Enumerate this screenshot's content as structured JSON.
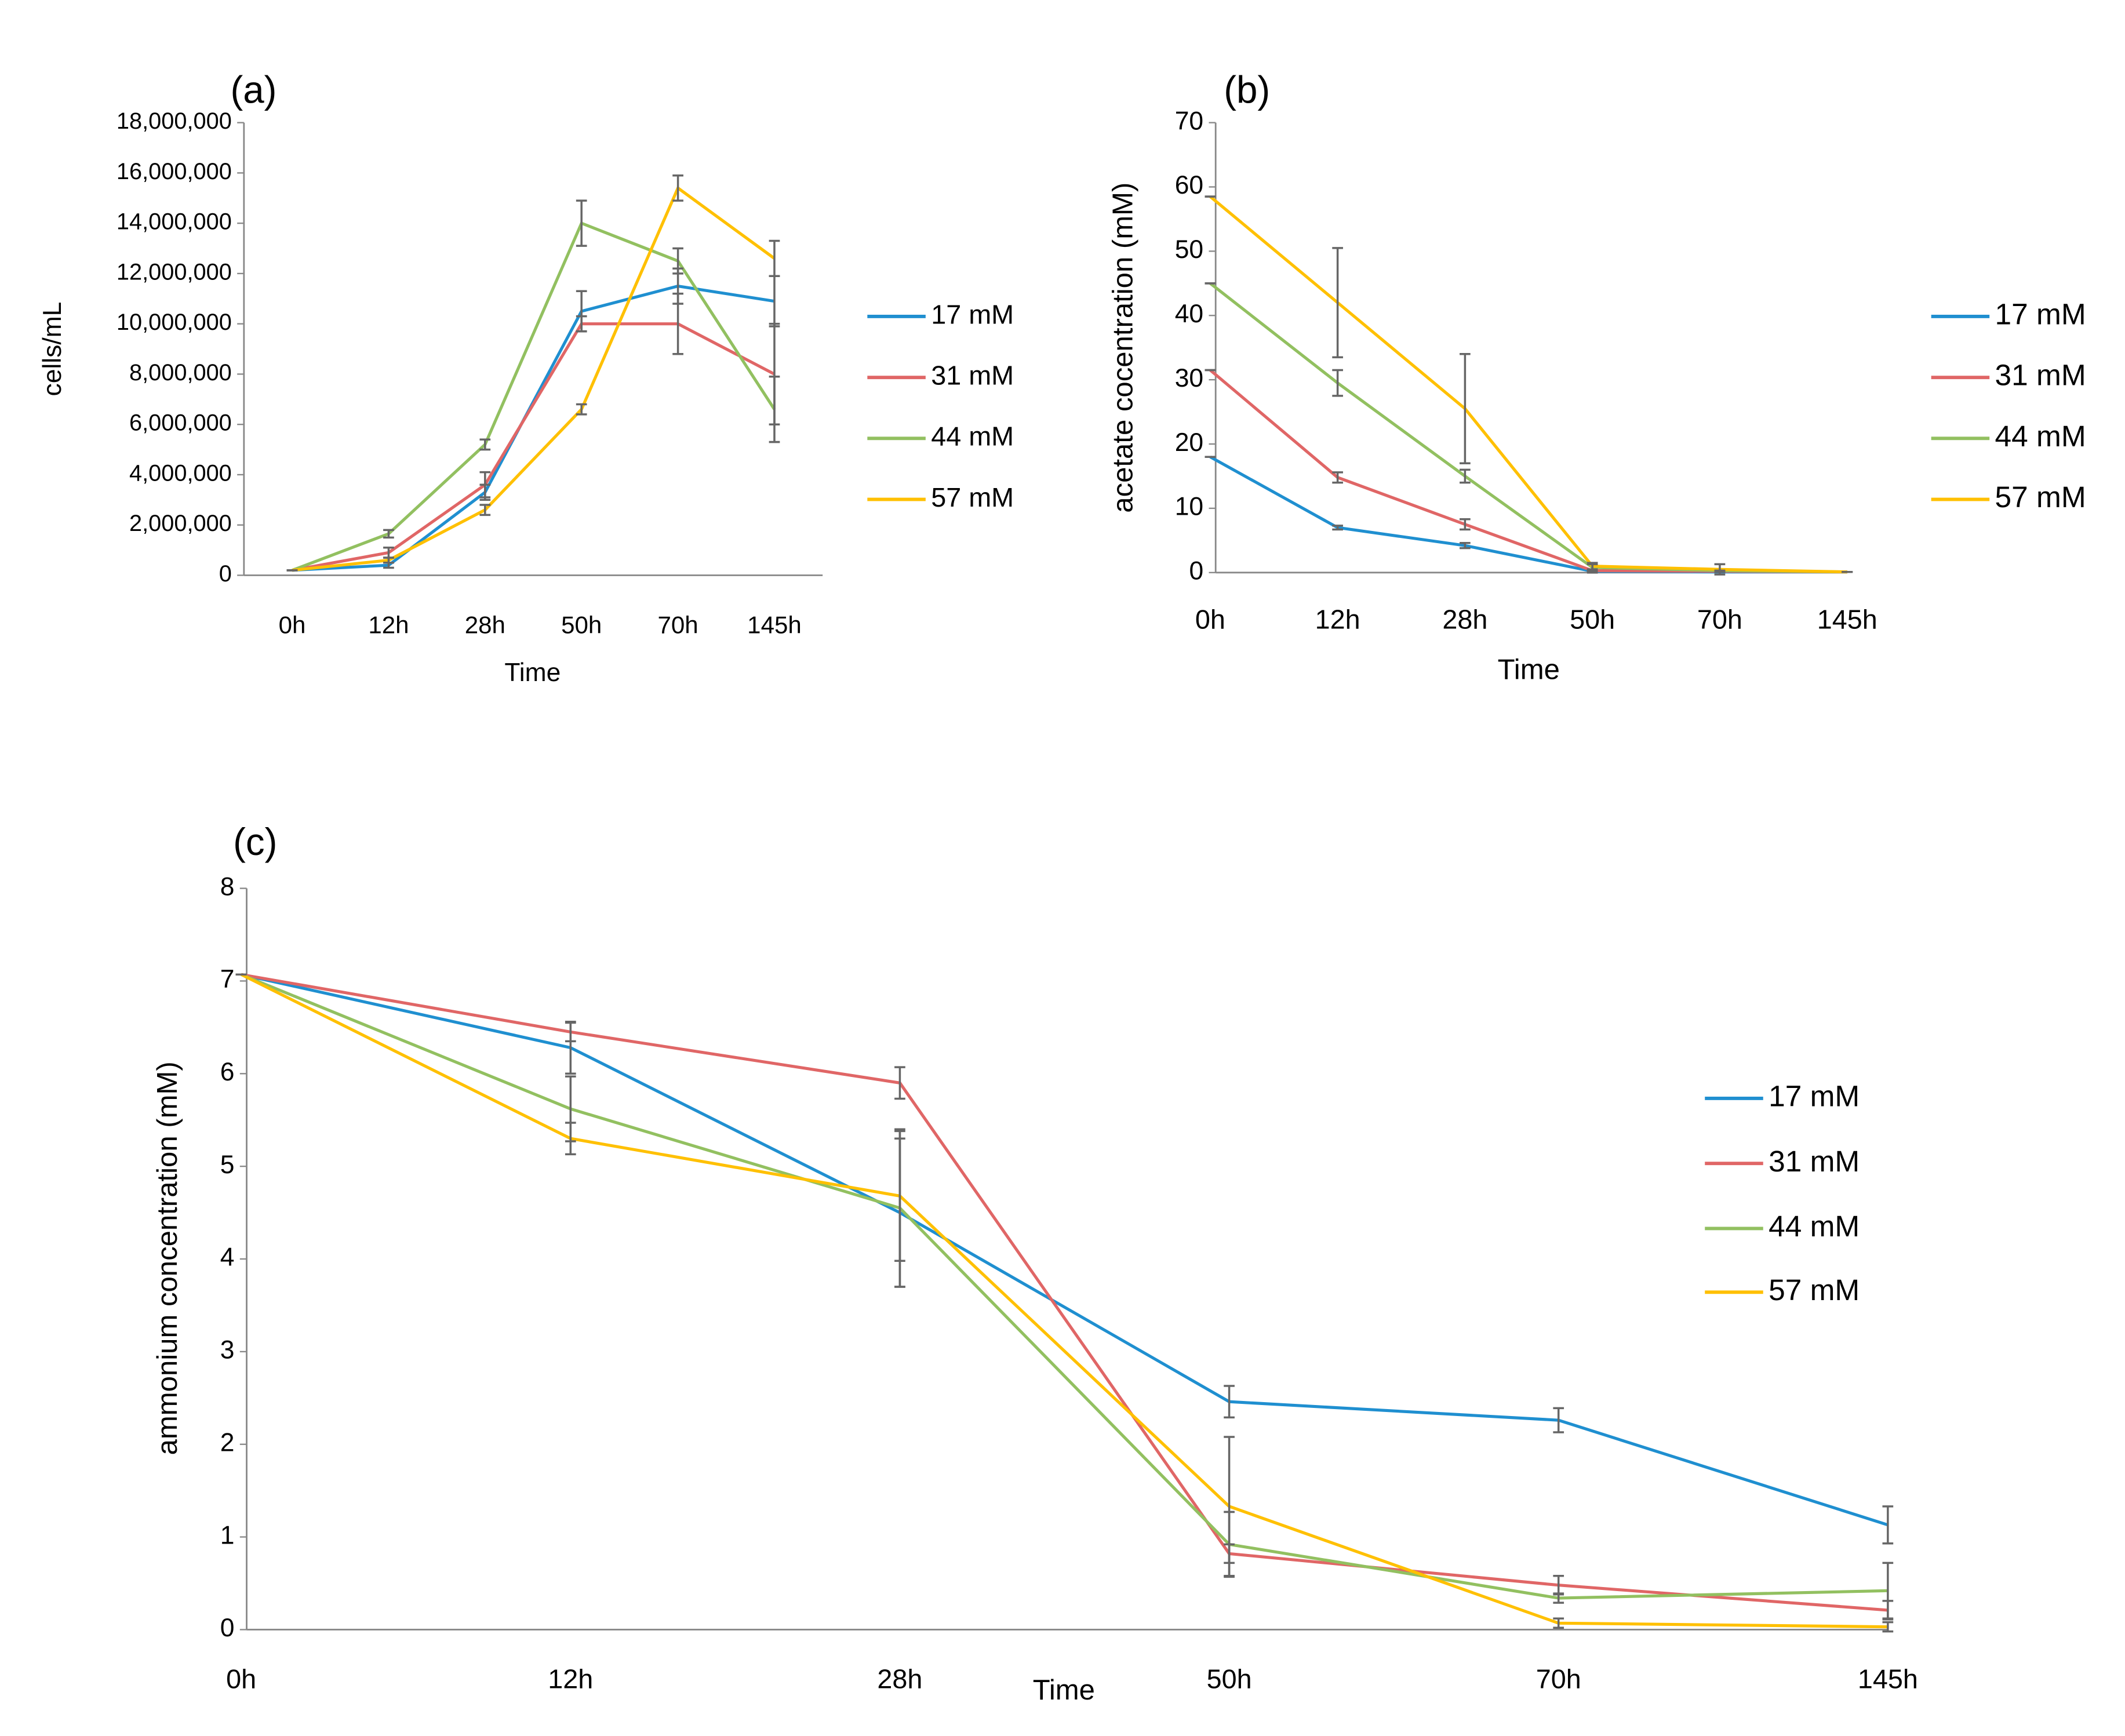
{
  "chart_data": [
    {
      "type": "line",
      "title": "(a)",
      "x_label": "Time",
      "y_label": "cells/mL",
      "categories": [
        "0h",
        "12h",
        "28h",
        "50h",
        "70h",
        "145h"
      ],
      "ylim": [
        0,
        18000000
      ],
      "yticks": [
        0,
        {
          "value": 2000000,
          "label": "2,000,000"
        },
        {
          "value": 4000000,
          "label": "4,000,000"
        },
        {
          "value": 6000000,
          "label": "6,000,000"
        },
        {
          "value": 8000000,
          "label": "8,000,000"
        },
        {
          "value": 10000000,
          "label": "10,000,000"
        },
        {
          "value": 12000000,
          "label": "12,000,000"
        },
        {
          "value": 14000000,
          "label": "14,000,000"
        },
        {
          "value": 16000000,
          "label": "16,000,000"
        },
        {
          "value": 18000000,
          "label": "18,000,000"
        }
      ],
      "legend": "right",
      "series": [
        {
          "name": "17 mM",
          "color": "#1f8fd0",
          "values": [
            200000,
            400000,
            3300000,
            10500000,
            11500000,
            10900000
          ],
          "errors": [
            0,
            100000,
            300000,
            800000,
            700000,
            1000000
          ]
        },
        {
          "name": "31 mM",
          "color": "#e06666",
          "values": [
            200000,
            900000,
            3600000,
            10000000,
            10000000,
            8000000
          ],
          "errors": [
            0,
            200000,
            500000,
            300000,
            1200000,
            2000000
          ]
        },
        {
          "name": "44 mM",
          "color": "#92c060",
          "values": [
            200000,
            1650000,
            5200000,
            14000000,
            12500000,
            6600000
          ],
          "errors": [
            0,
            150000,
            200000,
            900000,
            500000,
            1300000
          ]
        },
        {
          "name": "57 mM",
          "color": "#ffc000",
          "values": [
            200000,
            600000,
            2600000,
            6600000,
            15400000,
            12600000
          ],
          "errors": [
            0,
            100000,
            200000,
            200000,
            500000,
            700000
          ]
        }
      ]
    },
    {
      "type": "line",
      "title": "(b)",
      "x_label": "Time",
      "y_label": "acetate cocentration (mM)",
      "categories": [
        "0h",
        "12h",
        "28h",
        "50h",
        "70h",
        "145h"
      ],
      "ylim": [
        0,
        70
      ],
      "yticks": [
        0,
        10,
        20,
        30,
        40,
        50,
        60,
        70
      ],
      "legend": "right",
      "series": [
        {
          "name": "17 mM",
          "color": "#1f8fd0",
          "values": [
            18,
            7,
            4.2,
            0.2,
            0.1,
            0.1
          ],
          "errors": [
            0,
            0.3,
            0.4,
            0.2,
            0,
            0
          ]
        },
        {
          "name": "31 mM",
          "color": "#e06666",
          "values": [
            31.5,
            14.8,
            7.5,
            0.3,
            0.2,
            0.1
          ],
          "errors": [
            0,
            0.8,
            0.8,
            0.2,
            0,
            0
          ]
        },
        {
          "name": "44 mM",
          "color": "#92c060",
          "values": [
            45,
            29.5,
            15,
            0.8,
            0.3,
            0.1
          ],
          "errors": [
            0,
            2,
            1,
            0.5,
            0,
            0
          ]
        },
        {
          "name": "57 mM",
          "color": "#ffc000",
          "values": [
            58.5,
            42,
            25.5,
            1,
            0.5,
            0.1
          ],
          "errors": [
            0,
            8.5,
            8.5,
            0.5,
            0.8,
            0
          ]
        }
      ]
    },
    {
      "type": "line",
      "title": "(c)",
      "x_label": "Time",
      "y_label": "ammonium concentration (mM)",
      "categories": [
        "0h",
        "12h",
        "28h",
        "50h",
        "70h",
        "145h"
      ],
      "ylim": [
        0,
        8
      ],
      "yticks": [
        0,
        1,
        2,
        3,
        4,
        5,
        6,
        7,
        8
      ],
      "legend": "right",
      "series": [
        {
          "name": "17 mM",
          "color": "#1f8fd0",
          "values": [
            7.07,
            6.28,
            4.5,
            2.46,
            2.26,
            1.13
          ],
          "errors": [
            0,
            0.28,
            0.8,
            0.17,
            0.13,
            0.2
          ]
        },
        {
          "name": "31 mM",
          "color": "#e06666",
          "values": [
            7.07,
            6.45,
            5.9,
            0.82,
            0.48,
            0.21
          ],
          "errors": [
            0,
            0.1,
            0.17,
            0.1,
            0.1,
            0.1
          ]
        },
        {
          "name": "44 mM",
          "color": "#92c060",
          "values": [
            7.07,
            5.62,
            4.55,
            0.92,
            0.34,
            0.42
          ],
          "errors": [
            0,
            0.35,
            0.85,
            0.35,
            0.05,
            0.3
          ]
        },
        {
          "name": "57 mM",
          "color": "#ffc000",
          "values": [
            7.07,
            5.3,
            4.68,
            1.33,
            0.07,
            0.03
          ],
          "errors": [
            0,
            0.17,
            0.7,
            0.75,
            0.05,
            0.05
          ]
        }
      ]
    }
  ]
}
